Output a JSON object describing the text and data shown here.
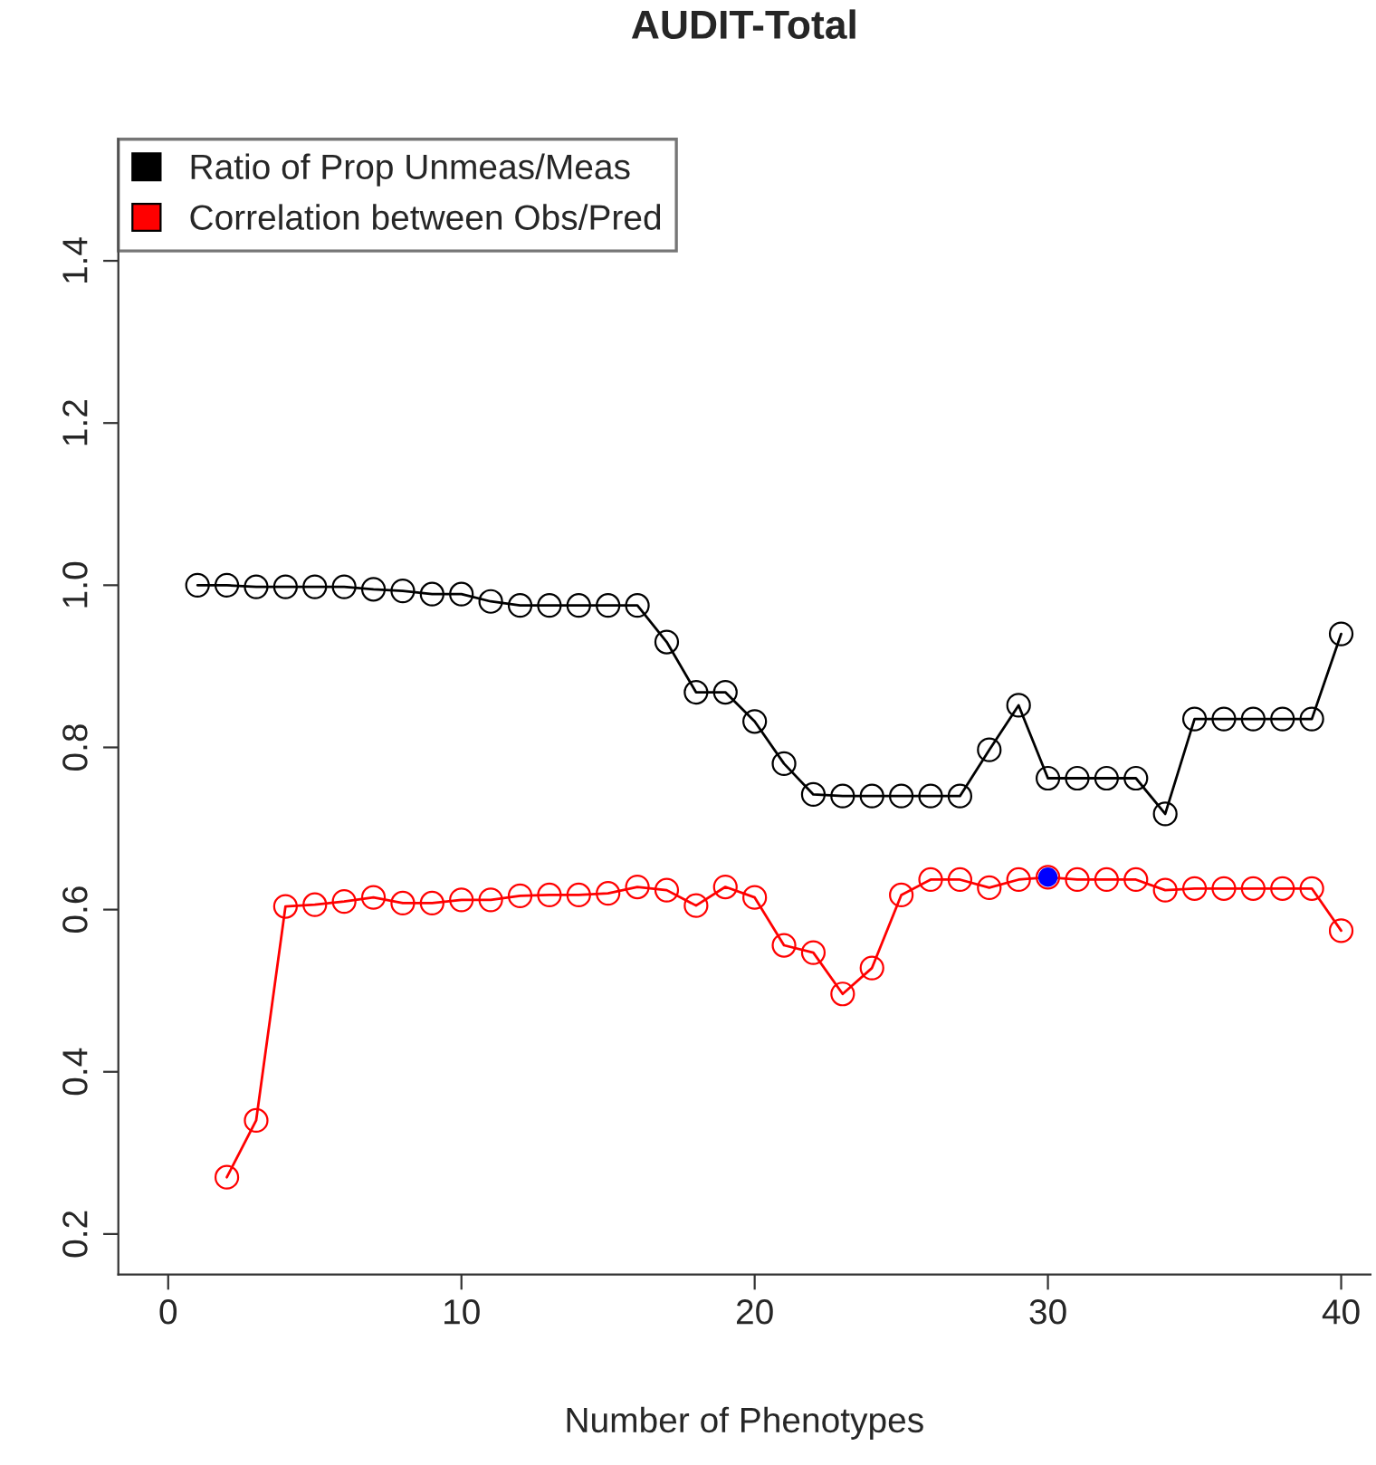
{
  "chart_data": {
    "type": "line",
    "title": "AUDIT-Total",
    "xlabel": "Number of Phenotypes",
    "series": [
      {
        "name": "Ratio of Prop Unmeas/Meas",
        "color": "#000000",
        "x": [
          1,
          2,
          3,
          4,
          5,
          6,
          7,
          8,
          9,
          10,
          11,
          12,
          13,
          14,
          15,
          16,
          17,
          18,
          19,
          20,
          21,
          22,
          23,
          24,
          25,
          26,
          27,
          28,
          29,
          30,
          31,
          32,
          33,
          34,
          35,
          36,
          37,
          38,
          39,
          40
        ],
        "values": [
          1.0,
          1.0,
          0.998,
          0.998,
          0.998,
          0.998,
          0.995,
          0.993,
          0.989,
          0.989,
          0.98,
          0.975,
          0.975,
          0.975,
          0.975,
          0.975,
          0.93,
          0.868,
          0.868,
          0.832,
          0.78,
          0.742,
          0.74,
          0.74,
          0.74,
          0.74,
          0.74,
          0.797,
          0.852,
          0.762,
          0.762,
          0.762,
          0.762,
          0.718,
          0.835,
          0.835,
          0.835,
          0.835,
          0.835,
          0.94
        ]
      },
      {
        "name": "Correlation between Obs/Pred",
        "color": "#ff0000",
        "x": [
          2,
          3,
          4,
          5,
          6,
          7,
          8,
          9,
          10,
          11,
          12,
          13,
          14,
          15,
          16,
          17,
          18,
          19,
          20,
          21,
          22,
          23,
          24,
          25,
          26,
          27,
          28,
          29,
          30,
          31,
          32,
          33,
          34,
          35,
          36,
          37,
          38,
          39,
          40
        ],
        "values": [
          0.27,
          0.34,
          0.604,
          0.606,
          0.61,
          0.615,
          0.608,
          0.608,
          0.612,
          0.612,
          0.617,
          0.618,
          0.618,
          0.62,
          0.628,
          0.624,
          0.605,
          0.628,
          0.615,
          0.556,
          0.547,
          0.496,
          0.528,
          0.618,
          0.637,
          0.637,
          0.627,
          0.637,
          0.64,
          0.637,
          0.637,
          0.637,
          0.624,
          0.626,
          0.626,
          0.626,
          0.626,
          0.626,
          0.574
        ]
      },
      {
        "type": "scatter",
        "color": "#0000ff",
        "x": [
          30
        ],
        "values": [
          0.64
        ]
      }
    ],
    "xlim": [
      -1.7,
      41.0
    ],
    "ylim": [
      0.15,
      1.55
    ],
    "xticks": [
      0,
      10,
      20,
      30,
      40
    ],
    "yticks": [
      0.2,
      0.4,
      0.6,
      0.8,
      {
        "value": 1,
        "label": "1.0"
      },
      1.2,
      1.4
    ],
    "marker": "circle",
    "legend": "top left",
    "grid": false
  }
}
